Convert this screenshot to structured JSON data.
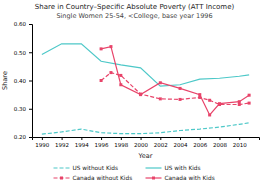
{
  "chart_data": {
    "type": "line",
    "title": "Share in Country–Specific Absolute Poverty (ATT Income)",
    "subtitle": "Single Women 25-54, <College, base year 1996",
    "xlabel": "Year",
    "ylabel": "Share",
    "xlim": [
      1989,
      2012
    ],
    "xticks": [
      1990,
      1992,
      1994,
      1996,
      1998,
      2000,
      2002,
      2004,
      2006,
      2008,
      2010
    ],
    "ylim": [
      0.2,
      0.6
    ],
    "yticks": [
      {
        "value": 0.2,
        "label": "0.20"
      },
      {
        "value": 0.3,
        "label": "0.30"
      },
      {
        "value": 0.4,
        "label": "0.40"
      },
      {
        "value": 0.5,
        "label": "0.50"
      },
      {
        "value": 0.6,
        "label": "0.60"
      }
    ],
    "grid": false,
    "legend": "bottom",
    "series": [
      {
        "name": "US without Kids",
        "color": "#4dc8c8",
        "line_style": "dashed",
        "x": [
          1990,
          1992,
          1994,
          1996,
          1998,
          2000,
          2002,
          2004,
          2006,
          2008,
          2010,
          2011
        ],
        "values": [
          0.21,
          0.218,
          0.228,
          0.215,
          0.212,
          0.212,
          0.215,
          0.223,
          0.228,
          0.235,
          0.245,
          0.25
        ]
      },
      {
        "name": "US with Kids",
        "color": "#4dc8c8",
        "line_style": "solid",
        "x": [
          1990,
          1992,
          1994,
          1996,
          1998,
          2000,
          2002,
          2004,
          2006,
          2008,
          2010,
          2011
        ],
        "values": [
          0.492,
          0.53,
          0.53,
          0.468,
          0.455,
          0.445,
          0.38,
          0.385,
          0.405,
          0.408,
          0.415,
          0.42
        ]
      },
      {
        "name": "Canada without Kids",
        "color": "#e8446a",
        "line_style": "dashed",
        "marker": "square",
        "x": [
          1996,
          1997,
          1998,
          2000,
          2002,
          2004,
          2006,
          2007,
          2008,
          2010,
          2011
        ],
        "values": [
          0.4,
          0.428,
          0.418,
          0.352,
          0.335,
          0.333,
          0.34,
          0.33,
          0.315,
          0.315,
          0.32
        ]
      },
      {
        "name": "Canada with Kids",
        "color": "#e8446a",
        "line_style": "solid",
        "marker": "square",
        "x": [
          1996,
          1997,
          1998,
          2000,
          2002,
          2004,
          2006,
          2007,
          2008,
          2010,
          2011
        ],
        "values": [
          0.512,
          0.52,
          0.385,
          0.35,
          0.392,
          0.372,
          0.35,
          0.278,
          0.318,
          0.325,
          0.348
        ]
      }
    ]
  }
}
